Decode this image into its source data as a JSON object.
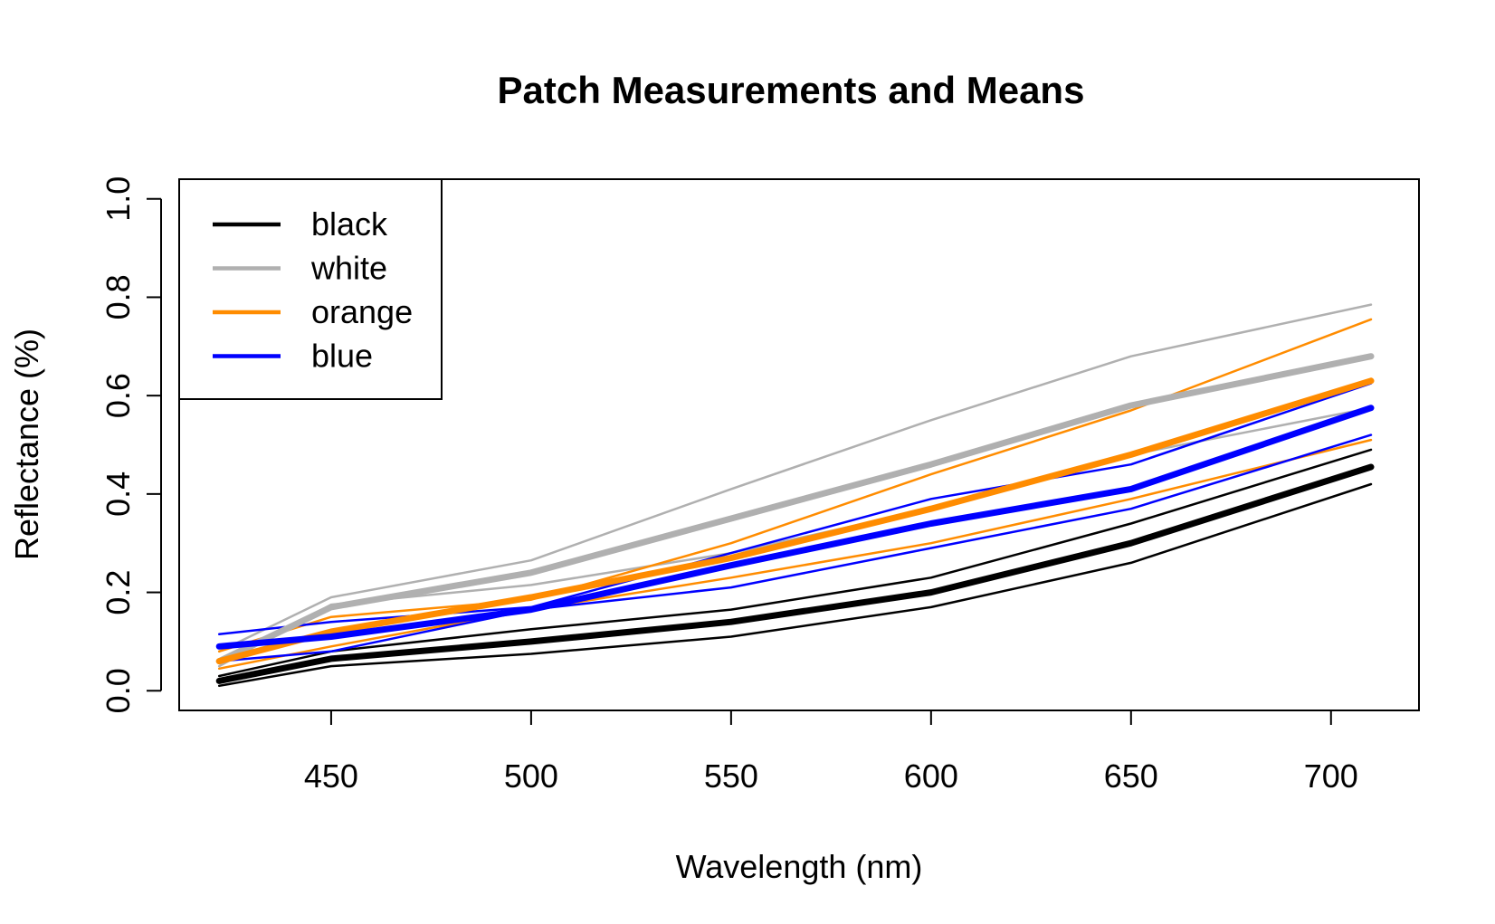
{
  "chart_data": {
    "type": "line",
    "title": "Patch Measurements and Means",
    "xlabel": "Wavelength (nm)",
    "ylabel": "Reflectance (%)",
    "xlim": [
      412,
      722
    ],
    "ylim": [
      -0.04,
      1.04
    ],
    "xticks": [
      450,
      500,
      550,
      600,
      650,
      700
    ],
    "yticks": [
      0.0,
      0.2,
      0.4,
      0.6,
      0.8,
      1.0
    ],
    "xtick_labels": [
      "450",
      "500",
      "550",
      "600",
      "650",
      "700"
    ],
    "ytick_labels": [
      "0.0",
      "0.2",
      "0.4",
      "0.6",
      "0.8",
      "1.0"
    ],
    "legend_position": "top-left",
    "grid": false,
    "x": [
      422,
      450,
      500,
      550,
      600,
      650,
      710
    ],
    "series": [
      {
        "name": "black",
        "role": "mean",
        "color": "#000000",
        "values": [
          0.02,
          0.065,
          0.1,
          0.14,
          0.2,
          0.3,
          0.455
        ]
      },
      {
        "role": "measurement",
        "color": "#000000",
        "values": [
          0.03,
          0.08,
          0.125,
          0.165,
          0.23,
          0.34,
          0.49
        ]
      },
      {
        "role": "measurement",
        "color": "#000000",
        "values": [
          0.01,
          0.05,
          0.075,
          0.11,
          0.17,
          0.26,
          0.42
        ]
      },
      {
        "name": "white",
        "role": "mean",
        "color": "#b0b0b0",
        "values": [
          0.06,
          0.17,
          0.24,
          0.35,
          0.46,
          0.58,
          0.68
        ]
      },
      {
        "role": "measurement",
        "color": "#b0b0b0",
        "values": [
          0.08,
          0.19,
          0.265,
          0.41,
          0.55,
          0.68,
          0.785
        ]
      },
      {
        "role": "measurement",
        "color": "#b0b0b0",
        "values": [
          0.05,
          0.175,
          0.215,
          0.28,
          0.37,
          0.48,
          0.575
        ]
      },
      {
        "name": "orange",
        "role": "mean",
        "color": "#ff8c00",
        "values": [
          0.06,
          0.12,
          0.19,
          0.27,
          0.37,
          0.48,
          0.63
        ]
      },
      {
        "role": "measurement",
        "color": "#ff8c00",
        "values": [
          0.08,
          0.15,
          0.185,
          0.3,
          0.44,
          0.57,
          0.755
        ]
      },
      {
        "role": "measurement",
        "color": "#ff8c00",
        "values": [
          0.045,
          0.09,
          0.165,
          0.23,
          0.3,
          0.39,
          0.51
        ]
      },
      {
        "name": "blue",
        "role": "mean",
        "color": "#0000ff",
        "values": [
          0.09,
          0.11,
          0.165,
          0.255,
          0.34,
          0.41,
          0.575
        ]
      },
      {
        "role": "measurement",
        "color": "#0000ff",
        "values": [
          0.115,
          0.14,
          0.17,
          0.28,
          0.39,
          0.46,
          0.625
        ]
      },
      {
        "role": "measurement",
        "color": "#0000ff",
        "values": [
          0.06,
          0.08,
          0.165,
          0.21,
          0.29,
          0.37,
          0.52
        ]
      }
    ]
  }
}
